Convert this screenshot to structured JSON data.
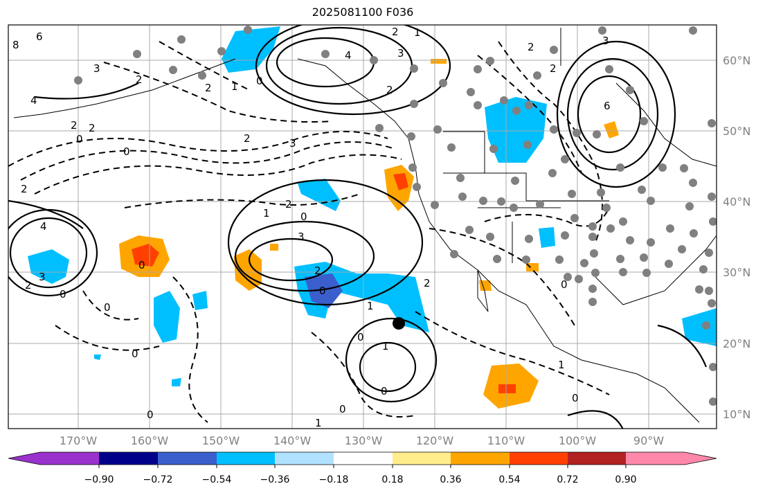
{
  "title": "2025081100 F036",
  "lon_labels": [
    "170°W",
    "160°W",
    "150°W",
    "140°W",
    "130°W",
    "120°W",
    "110°W",
    "100°W",
    "90°W"
  ],
  "lat_labels": [
    "60°N",
    "50°N",
    "40°N",
    "30°N",
    "20°N",
    "10°N"
  ],
  "colorbar": {
    "ticks": [
      "−0.90",
      "−0.72",
      "−0.54",
      "−0.36",
      "−0.18",
      "0.18",
      "0.36",
      "0.54",
      "0.72",
      "0.90"
    ],
    "colors": [
      "#9933cc",
      "#00008b",
      "#3a5fcd",
      "#00bfff",
      "#b0e2ff",
      "#ffffff",
      "#ffec8b",
      "#ffa500",
      "#ff4000",
      "#b22222",
      "#ff88aa"
    ]
  },
  "contour_labels": [
    "6",
    "8",
    "3",
    "4",
    "2",
    "2",
    "0",
    "2",
    "2",
    "1",
    "0",
    "2",
    "3",
    "0",
    "4",
    "3",
    "2",
    "2",
    "0",
    "0",
    "1",
    "2",
    "0",
    "3",
    "2",
    "0",
    "0",
    "1",
    "2",
    "0",
    "0",
    "1",
    "0",
    "0",
    "1",
    "0",
    "0",
    "2",
    "2",
    "6",
    "4",
    "3",
    "2",
    "1",
    "0",
    "3",
    "2",
    "1"
  ],
  "marker": "black-dot"
}
